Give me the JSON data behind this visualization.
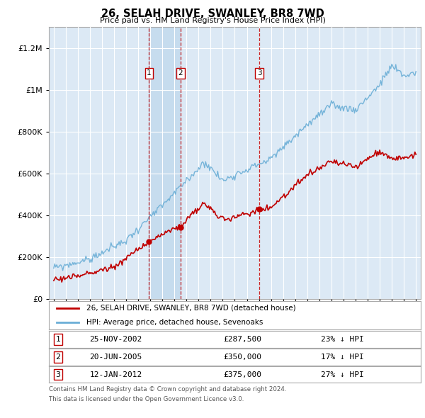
{
  "title": "26, SELAH DRIVE, SWANLEY, BR8 7WD",
  "subtitle": "Price paid vs. HM Land Registry's House Price Index (HPI)",
  "plot_bg_color": "#dce9f5",
  "grid_color": "#ffffff",
  "hpi_line_color": "#6aaed6",
  "price_line_color": "#c00000",
  "shade_color": "#b8d4ea",
  "purchases": [
    {
      "label": "1",
      "date": "25-NOV-2002",
      "price": 287500,
      "hpi_pct": "23% ↓ HPI",
      "x_year": 2002.9
    },
    {
      "label": "2",
      "date": "20-JUN-2005",
      "price": 350000,
      "hpi_pct": "17% ↓ HPI",
      "x_year": 2005.5
    },
    {
      "label": "3",
      "date": "12-JAN-2012",
      "price": 375000,
      "hpi_pct": "27% ↓ HPI",
      "x_year": 2012.04
    }
  ],
  "legend_line1": "26, SELAH DRIVE, SWANLEY, BR8 7WD (detached house)",
  "legend_line2": "HPI: Average price, detached house, Sevenoaks",
  "footnote1": "Contains HM Land Registry data © Crown copyright and database right 2024.",
  "footnote2": "This data is licensed under the Open Government Licence v3.0.",
  "ylim_max": 1300000,
  "xlim_start": 1994.6,
  "xlim_end": 2025.4,
  "yticks": [
    0,
    200000,
    400000,
    600000,
    800000,
    1000000,
    1200000
  ]
}
